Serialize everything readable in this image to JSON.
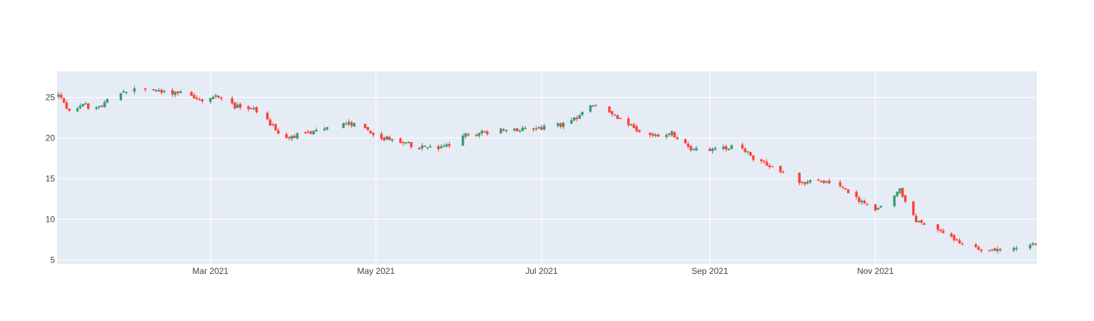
{
  "chart_data": {
    "type": "candlestick",
    "title": "",
    "xlabel": "",
    "ylabel": "",
    "ylim": [
      4.5,
      28.2
    ],
    "x_range": [
      "2021-01-04",
      "2021-12-30"
    ],
    "increasing_color": "#3D9970",
    "decreasing_color": "#FF4136",
    "plot_bg": "#E5ECF6",
    "grid_color": "#ffffff",
    "y_ticks": [
      {
        "value": 5,
        "label": "5"
      },
      {
        "value": 10,
        "label": "10"
      },
      {
        "value": 15,
        "label": "15"
      },
      {
        "value": 20,
        "label": "20"
      },
      {
        "value": 25,
        "label": "25"
      }
    ],
    "x_ticks": [
      {
        "date": "2021-03-01",
        "label": "Mar 2021"
      },
      {
        "date": "2021-05-01",
        "label": "May 2021"
      },
      {
        "date": "2021-07-01",
        "label": "Jul 2021"
      },
      {
        "date": "2021-09-01",
        "label": "Sep 2021"
      },
      {
        "date": "2021-11-01",
        "label": "Nov 2021"
      }
    ],
    "anchors": [
      [
        "2021-01-04",
        25.2
      ],
      [
        "2021-01-08",
        23.5
      ],
      [
        "2021-01-14",
        23.9
      ],
      [
        "2021-01-20",
        24.0
      ],
      [
        "2021-01-28",
        25.8
      ],
      [
        "2021-02-04",
        26.0
      ],
      [
        "2021-02-12",
        25.6
      ],
      [
        "2021-02-20",
        25.8
      ],
      [
        "2021-02-26",
        24.4
      ],
      [
        "2021-03-04",
        25.3
      ],
      [
        "2021-03-10",
        23.8
      ],
      [
        "2021-03-16",
        23.7
      ],
      [
        "2021-03-22",
        22.0
      ],
      [
        "2021-03-28",
        19.9
      ],
      [
        "2021-04-04",
        20.5
      ],
      [
        "2021-04-10",
        20.8
      ],
      [
        "2021-04-16",
        22.2
      ],
      [
        "2021-04-25",
        21.4
      ],
      [
        "2021-05-01",
        20.2
      ],
      [
        "2021-05-10",
        19.5
      ],
      [
        "2021-05-18",
        18.8
      ],
      [
        "2021-05-26",
        18.8
      ],
      [
        "2021-06-03",
        20.3
      ],
      [
        "2021-06-12",
        20.8
      ],
      [
        "2021-06-20",
        20.9
      ],
      [
        "2021-06-28",
        21.3
      ],
      [
        "2021-07-06",
        21.4
      ],
      [
        "2021-07-14",
        22.3
      ],
      [
        "2021-07-18",
        24.2
      ],
      [
        "2021-07-26",
        23.2
      ],
      [
        "2021-08-02",
        21.8
      ],
      [
        "2021-08-08",
        20.1
      ],
      [
        "2021-08-18",
        20.6
      ],
      [
        "2021-08-26",
        18.5
      ],
      [
        "2021-09-04",
        18.6
      ],
      [
        "2021-09-12",
        19.2
      ],
      [
        "2021-09-18",
        17.2
      ],
      [
        "2021-09-26",
        16.2
      ],
      [
        "2021-10-04",
        14.3
      ],
      [
        "2021-10-10",
        14.8
      ],
      [
        "2021-10-18",
        14.5
      ],
      [
        "2021-10-26",
        12.3
      ],
      [
        "2021-11-01",
        11.2
      ],
      [
        "2021-11-07",
        12.5
      ],
      [
        "2021-11-10",
        13.6
      ],
      [
        "2021-11-16",
        9.8
      ],
      [
        "2021-11-24",
        8.8
      ],
      [
        "2021-12-02",
        7.2
      ],
      [
        "2021-12-10",
        6.2
      ],
      [
        "2021-12-20",
        6.2
      ],
      [
        "2021-12-30",
        7.0
      ]
    ],
    "gaps": [
      [
        "2021-01-23",
        "2021-01-26"
      ],
      [
        "2021-02-02",
        "2021-02-04"
      ],
      [
        "2021-02-19",
        "2021-02-21"
      ],
      [
        "2021-03-06",
        "2021-03-08"
      ],
      [
        "2021-03-19",
        "2021-03-21"
      ],
      [
        "2021-04-14",
        "2021-04-16"
      ],
      [
        "2021-04-24",
        "2021-04-26"
      ],
      [
        "2021-05-29",
        "2021-06-01"
      ],
      [
        "2021-06-13",
        "2021-06-15"
      ],
      [
        "2021-07-03",
        "2021-07-06"
      ],
      [
        "2021-07-22",
        "2021-07-24"
      ],
      [
        "2021-08-07",
        "2021-08-09"
      ],
      [
        "2021-08-28",
        "2021-08-31"
      ],
      [
        "2021-09-10",
        "2021-09-12"
      ],
      [
        "2021-09-29",
        "2021-10-03"
      ],
      [
        "2021-10-16",
        "2021-10-18"
      ],
      [
        "2021-11-04",
        "2021-11-06"
      ],
      [
        "2021-11-20",
        "2021-11-23"
      ],
      [
        "2021-12-04",
        "2021-12-07"
      ],
      [
        "2021-12-18",
        "2021-12-21"
      ],
      [
        "2021-12-24",
        "2021-12-27"
      ]
    ]
  }
}
